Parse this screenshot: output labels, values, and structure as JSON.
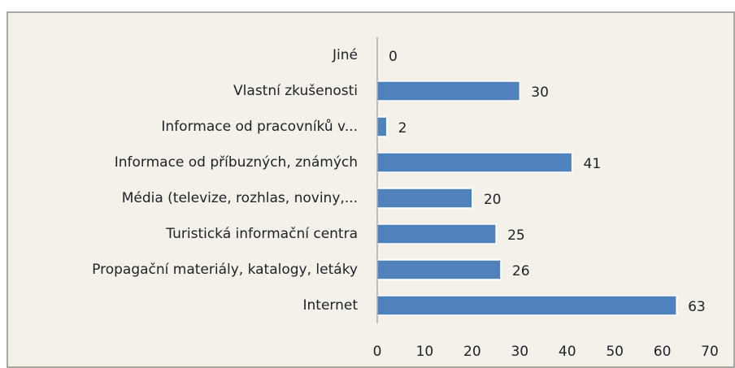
{
  "chart_data": {
    "type": "bar",
    "orientation": "horizontal",
    "categories": [
      "Jiné",
      "Vlastní zkušenosti",
      "Informace od pracovníků v...",
      "Informace od příbuzných, známých",
      "Média (televize, rozhlas, noviny,...",
      "Turistická informační centra",
      "Propagační materiály, katalogy, letáky",
      "Internet"
    ],
    "values": [
      0,
      30,
      2,
      41,
      20,
      25,
      26,
      63
    ],
    "color": "#4f81bd",
    "xlim": [
      0,
      70
    ],
    "xticks": [
      0,
      10,
      20,
      30,
      40,
      50,
      60,
      70
    ],
    "grid": false
  }
}
